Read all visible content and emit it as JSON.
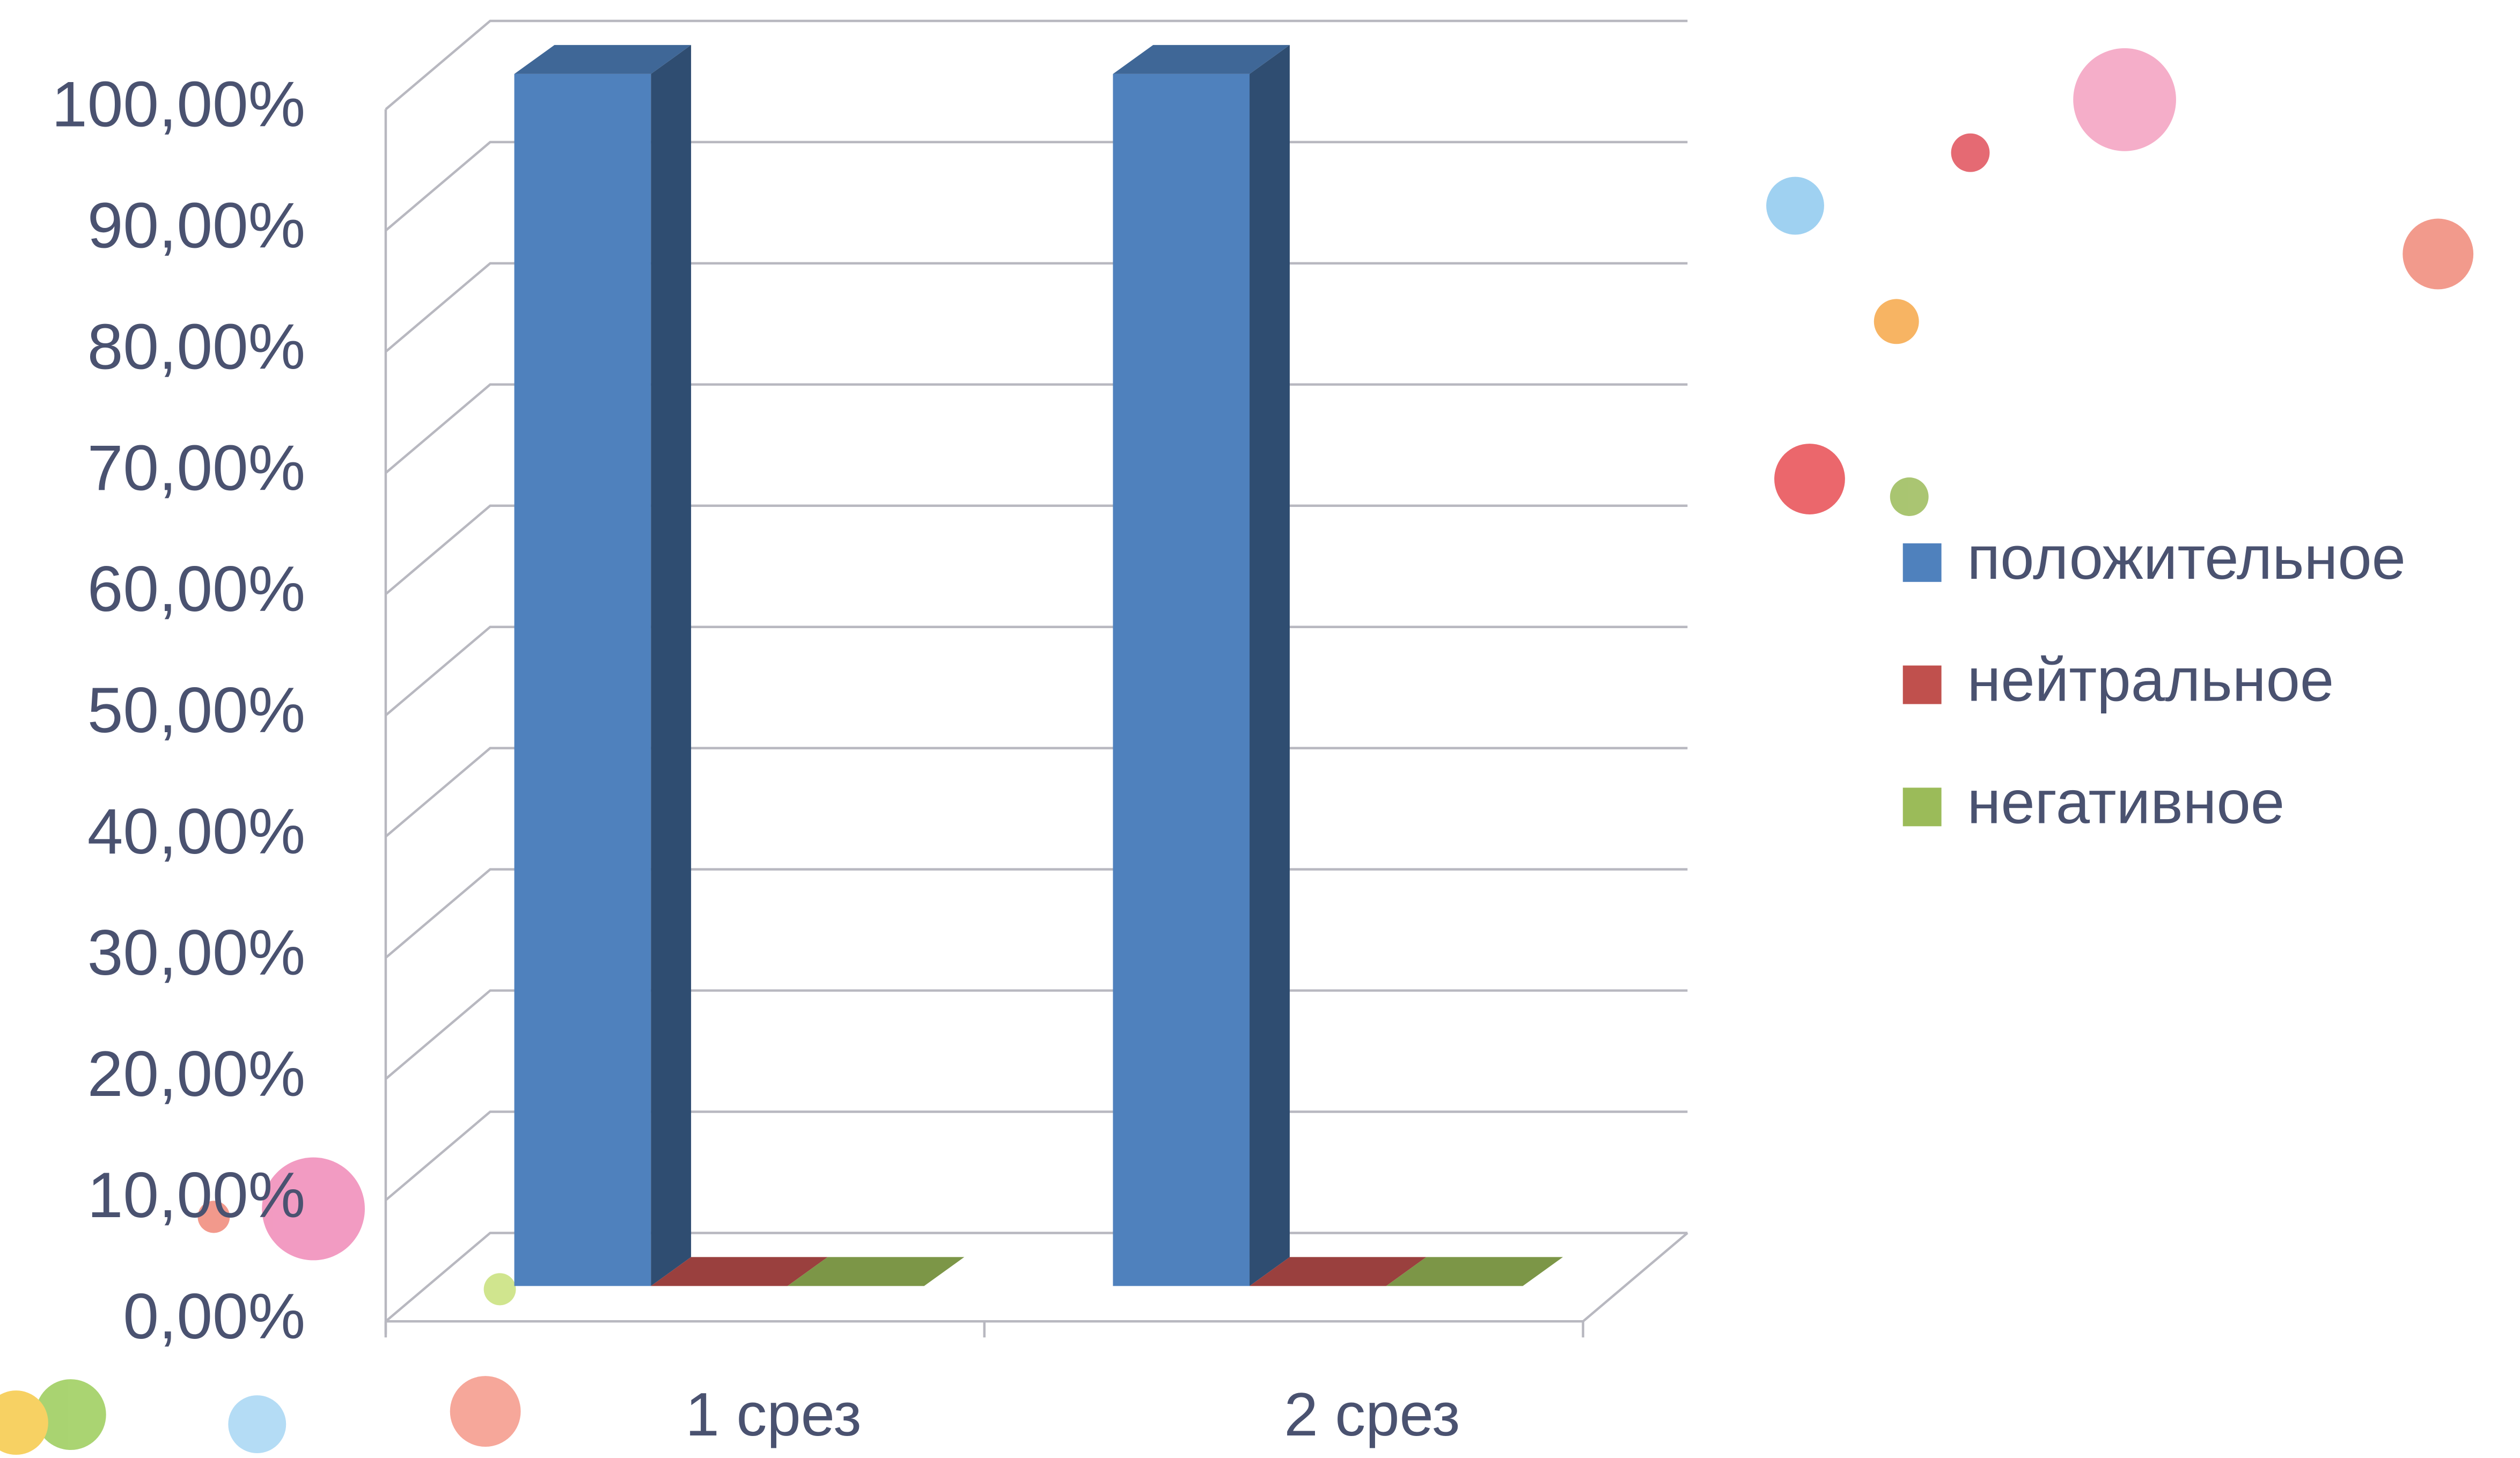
{
  "chart_data": {
    "type": "bar3d",
    "categories": [
      "1 срез",
      "2 срез"
    ],
    "series": [
      {
        "name": "положительное",
        "color": "#4f81bd",
        "values": [
          100,
          100
        ]
      },
      {
        "name": "нейтральное",
        "color": "#c0504d",
        "values": [
          0,
          0
        ]
      },
      {
        "name": "негативное",
        "color": "#9bbb59",
        "values": [
          0,
          0
        ]
      }
    ],
    "ylim": [
      0,
      100
    ],
    "yticks": [
      {
        "value": 0,
        "label": "0,00%"
      },
      {
        "value": 10,
        "label": "10,00%"
      },
      {
        "value": 20,
        "label": "20,00%"
      },
      {
        "value": 30,
        "label": "30,00%"
      },
      {
        "value": 40,
        "label": "40,00%"
      },
      {
        "value": 50,
        "label": "50,00%"
      },
      {
        "value": 60,
        "label": "60,00%"
      },
      {
        "value": 70,
        "label": "70,00%"
      },
      {
        "value": 80,
        "label": "80,00%"
      },
      {
        "value": 90,
        "label": "90,00%"
      },
      {
        "value": 100,
        "label": "100,00%"
      }
    ],
    "grid": true,
    "legend": "right"
  }
}
